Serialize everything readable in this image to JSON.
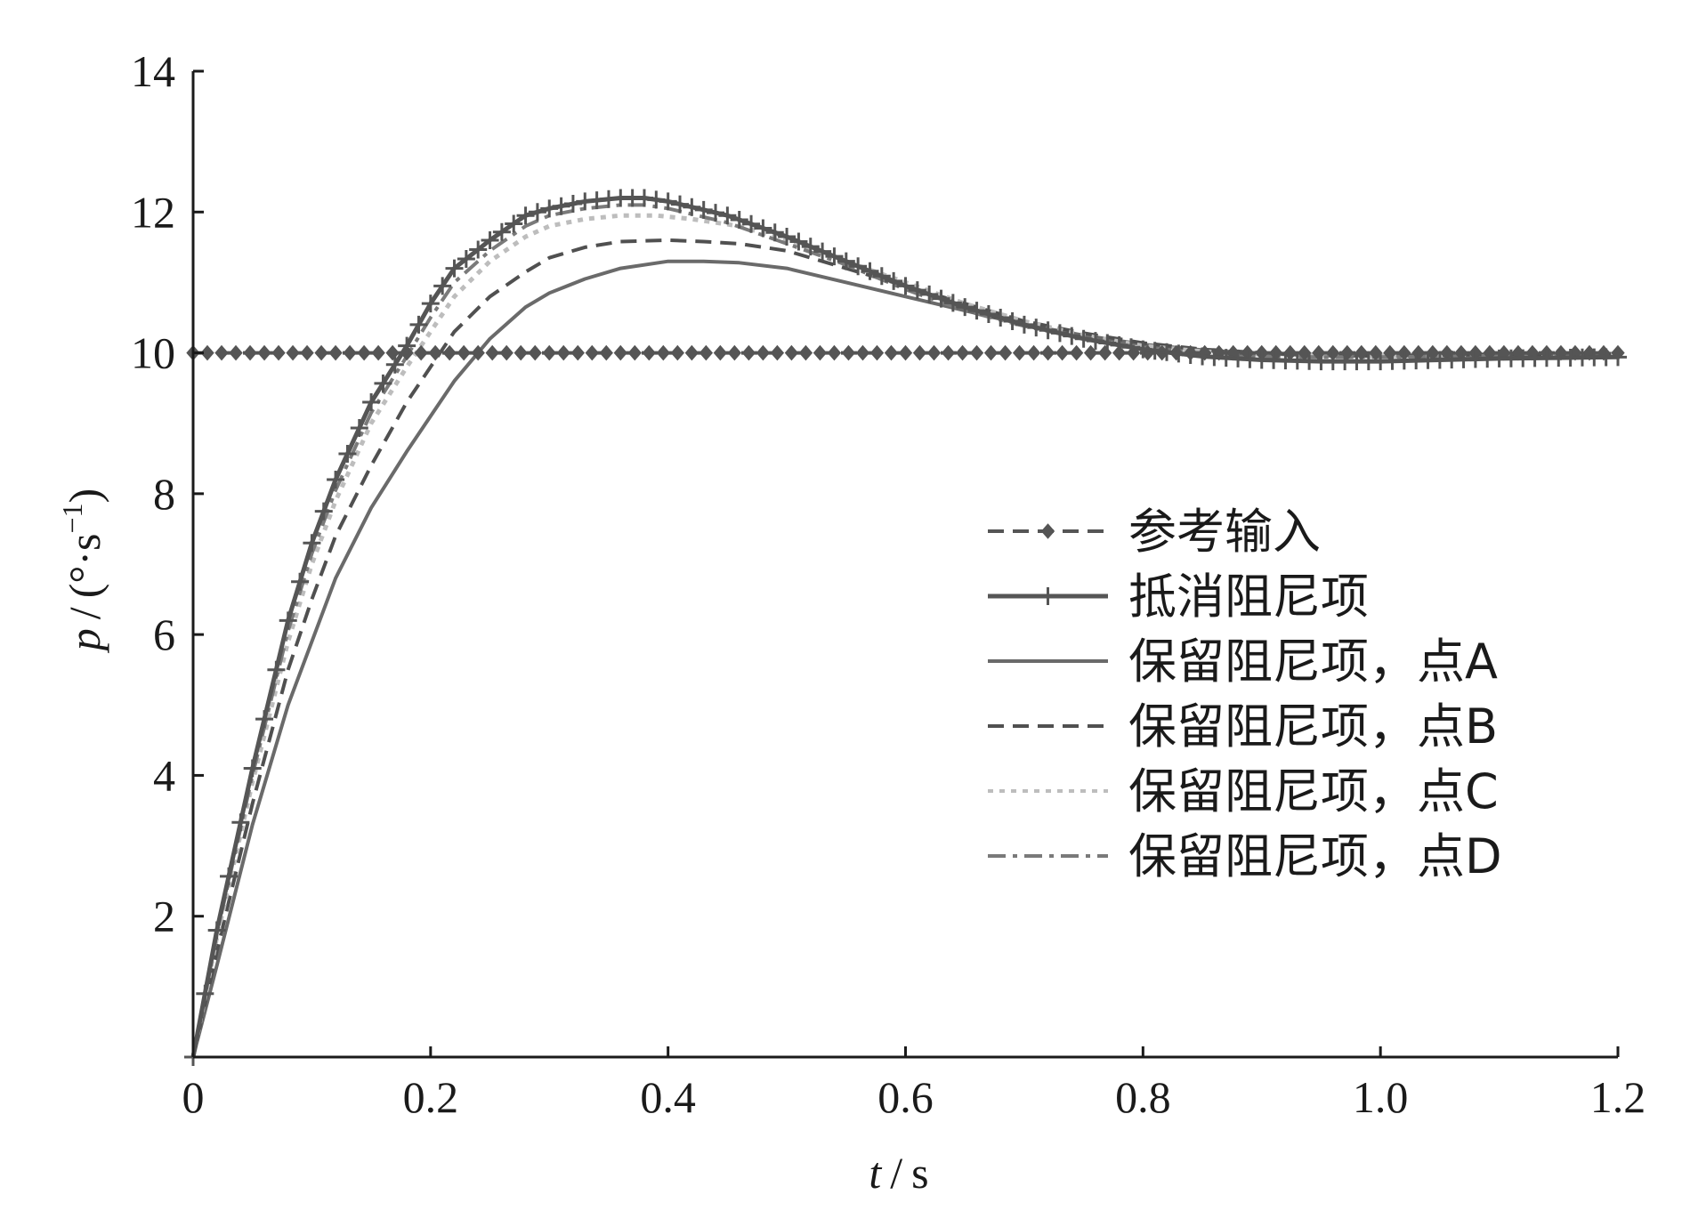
{
  "chart_data": {
    "type": "line",
    "title": "",
    "xlabel": {
      "var": "t",
      "unit": "s"
    },
    "ylabel": {
      "var": "p",
      "unit_pre": "(°·s",
      "unit_sup": "−1",
      "unit_post": ")"
    },
    "xlim": [
      0,
      1.2
    ],
    "ylim": [
      0,
      14
    ],
    "xticks": [
      0,
      0.2,
      0.4,
      0.6,
      0.8,
      1.0,
      1.2
    ],
    "xtick_labels": [
      "0",
      "0.2",
      "0.4",
      "0.6",
      "0.8",
      "1.0",
      "1.2"
    ],
    "yticks": [
      2,
      4,
      6,
      8,
      10,
      12,
      14
    ],
    "ytick_labels": [
      "2",
      "4",
      "6",
      "8",
      "10",
      "12",
      "14"
    ],
    "grid": false,
    "legend_position": "right",
    "series": [
      {
        "name": "参考输入",
        "color": "#555555",
        "dash": "dashed",
        "marker": "diamond",
        "x": [
          0,
          0.1,
          0.2,
          0.3,
          0.4,
          0.5,
          0.6,
          0.7,
          0.8,
          0.9,
          1.0,
          1.1,
          1.2
        ],
        "y": [
          10,
          10,
          10,
          10,
          10,
          10,
          10,
          10,
          10,
          10,
          10,
          10,
          10
        ]
      },
      {
        "name": "抵消阻尼项",
        "color": "#555555",
        "dash": "solid",
        "marker": "plus",
        "x": [
          0,
          0.02,
          0.05,
          0.08,
          0.1,
          0.12,
          0.15,
          0.18,
          0.2,
          0.22,
          0.25,
          0.28,
          0.3,
          0.33,
          0.36,
          0.38,
          0.4,
          0.45,
          0.5,
          0.55,
          0.6,
          0.65,
          0.7,
          0.75,
          0.8,
          0.85,
          0.9,
          0.95,
          1.0,
          1.05,
          1.1,
          1.15,
          1.2
        ],
        "y": [
          0,
          1.8,
          4.1,
          6.2,
          7.3,
          8.2,
          9.3,
          10.1,
          10.7,
          11.2,
          11.6,
          11.95,
          12.05,
          12.15,
          12.2,
          12.2,
          12.15,
          11.95,
          11.65,
          11.3,
          10.95,
          10.65,
          10.4,
          10.2,
          10.05,
          9.95,
          9.9,
          9.88,
          9.88,
          9.9,
          9.92,
          9.93,
          9.94
        ]
      },
      {
        "name": "保留阻尼项，点A",
        "color": "#6a6a6a",
        "dash": "solid",
        "marker": "none",
        "x": [
          0,
          0.02,
          0.05,
          0.08,
          0.1,
          0.12,
          0.15,
          0.18,
          0.2,
          0.22,
          0.25,
          0.28,
          0.3,
          0.33,
          0.36,
          0.4,
          0.43,
          0.46,
          0.5,
          0.55,
          0.6,
          0.65,
          0.7,
          0.75,
          0.8,
          0.85,
          0.9,
          0.95,
          1.0,
          1.05,
          1.1,
          1.15,
          1.2
        ],
        "y": [
          0,
          1.3,
          3.3,
          5.0,
          5.9,
          6.8,
          7.8,
          8.6,
          9.1,
          9.6,
          10.2,
          10.65,
          10.85,
          11.05,
          11.2,
          11.3,
          11.3,
          11.28,
          11.2,
          11.0,
          10.8,
          10.6,
          10.4,
          10.25,
          10.12,
          10.04,
          9.99,
          9.96,
          9.95,
          9.96,
          9.97,
          9.98,
          9.99
        ]
      },
      {
        "name": "保留阻尼项，点B",
        "color": "#505050",
        "dash": "dashed",
        "marker": "none",
        "x": [
          0,
          0.02,
          0.05,
          0.08,
          0.1,
          0.12,
          0.15,
          0.18,
          0.2,
          0.22,
          0.25,
          0.28,
          0.3,
          0.33,
          0.36,
          0.4,
          0.43,
          0.46,
          0.5,
          0.55,
          0.6,
          0.65,
          0.7,
          0.75,
          0.8,
          0.85,
          0.9,
          0.95,
          1.0,
          1.05,
          1.1,
          1.15,
          1.2
        ],
        "y": [
          0,
          1.5,
          3.6,
          5.5,
          6.5,
          7.4,
          8.4,
          9.3,
          9.8,
          10.3,
          10.8,
          11.15,
          11.35,
          11.5,
          11.58,
          11.6,
          11.58,
          11.55,
          11.45,
          11.2,
          10.95,
          10.7,
          10.45,
          10.28,
          10.14,
          10.05,
          10.0,
          9.97,
          9.96,
          9.97,
          9.98,
          9.98,
          9.99
        ]
      },
      {
        "name": "保留阻尼项，点C",
        "color": "#bdbdbd",
        "dash": "dotted",
        "marker": "none",
        "x": [
          0,
          0.02,
          0.05,
          0.08,
          0.1,
          0.12,
          0.15,
          0.18,
          0.2,
          0.22,
          0.25,
          0.28,
          0.3,
          0.33,
          0.36,
          0.39,
          0.42,
          0.46,
          0.5,
          0.55,
          0.6,
          0.65,
          0.7,
          0.75,
          0.8,
          0.85,
          0.9,
          0.95,
          1.0,
          1.05,
          1.1,
          1.15,
          1.2
        ],
        "y": [
          0,
          1.7,
          3.9,
          5.9,
          7.0,
          7.9,
          9.0,
          9.8,
          10.3,
          10.8,
          11.3,
          11.65,
          11.8,
          11.9,
          11.95,
          11.95,
          11.9,
          11.8,
          11.6,
          11.3,
          11.0,
          10.7,
          10.45,
          10.25,
          10.1,
          10.02,
          9.98,
          9.96,
          9.96,
          9.97,
          9.98,
          9.98,
          9.99
        ]
      },
      {
        "name": "保留阻尼项，点D",
        "color": "#7a7a7a",
        "dash": "dashdot",
        "marker": "none",
        "x": [
          0,
          0.02,
          0.05,
          0.08,
          0.1,
          0.12,
          0.15,
          0.18,
          0.2,
          0.22,
          0.25,
          0.28,
          0.3,
          0.33,
          0.36,
          0.38,
          0.4,
          0.45,
          0.5,
          0.55,
          0.6,
          0.65,
          0.7,
          0.75,
          0.8,
          0.85,
          0.9,
          0.95,
          1.0,
          1.05,
          1.1,
          1.15,
          1.2
        ],
        "y": [
          0,
          1.75,
          4.0,
          6.05,
          7.15,
          8.05,
          9.15,
          9.95,
          10.5,
          11.0,
          11.45,
          11.8,
          11.95,
          12.05,
          12.1,
          12.1,
          12.05,
          11.85,
          11.55,
          11.25,
          10.9,
          10.6,
          10.38,
          10.2,
          10.07,
          9.99,
          9.95,
          9.94,
          9.94,
          9.95,
          9.96,
          9.97,
          9.98
        ]
      }
    ]
  }
}
